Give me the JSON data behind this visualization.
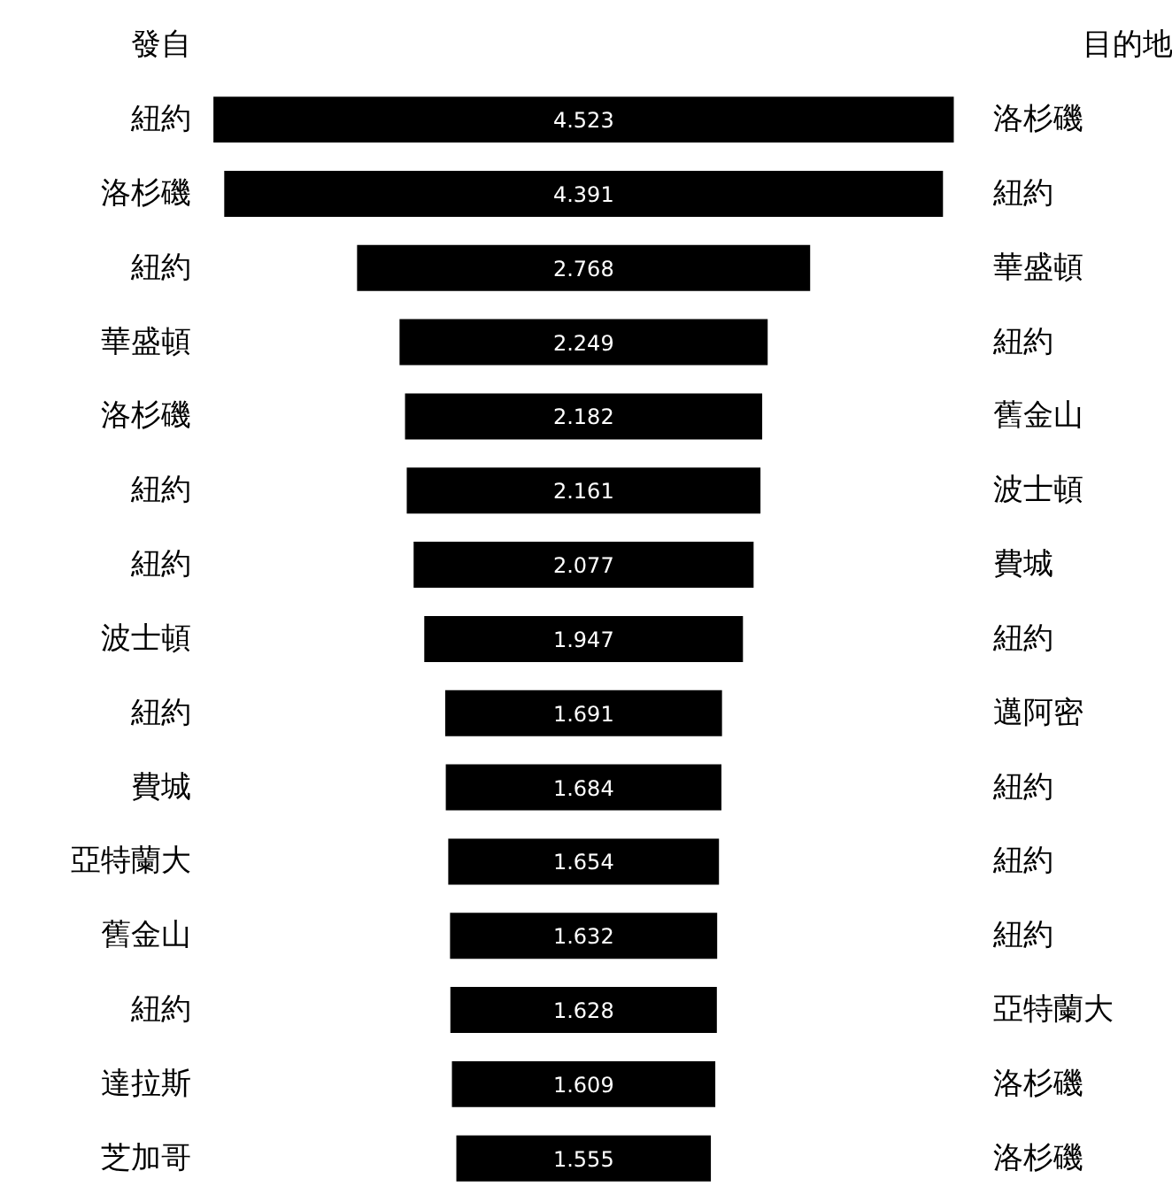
{
  "chart_data": {
    "type": "other",
    "ylabel": "發自",
    "y2label": "目的地",
    "categories": [
      "紐約",
      "洛杉磯",
      "紐約",
      "華盛頓",
      "洛杉磯",
      "紐約",
      "紐約",
      "波士頓",
      "紐約",
      "費城",
      "亞特蘭大",
      "舊金山",
      "紐約",
      "達拉斯",
      "芝加哥"
    ],
    "y2_categories": [
      "洛杉磯",
      "紐約",
      "華盛頓",
      "紐約",
      "舊金山",
      "波士頓",
      "費城",
      "紐約",
      "邁阿密",
      "紐約",
      "紐約",
      "紐約",
      "亞特蘭大",
      "洛杉磯",
      "洛杉磯"
    ],
    "values": [
      4.523,
      4.391,
      2.768,
      2.249,
      2.182,
      2.161,
      2.077,
      1.947,
      1.691,
      1.684,
      1.654,
      1.632,
      1.628,
      1.609,
      1.555
    ],
    "color": "#000000",
    "data_labels": true
  }
}
